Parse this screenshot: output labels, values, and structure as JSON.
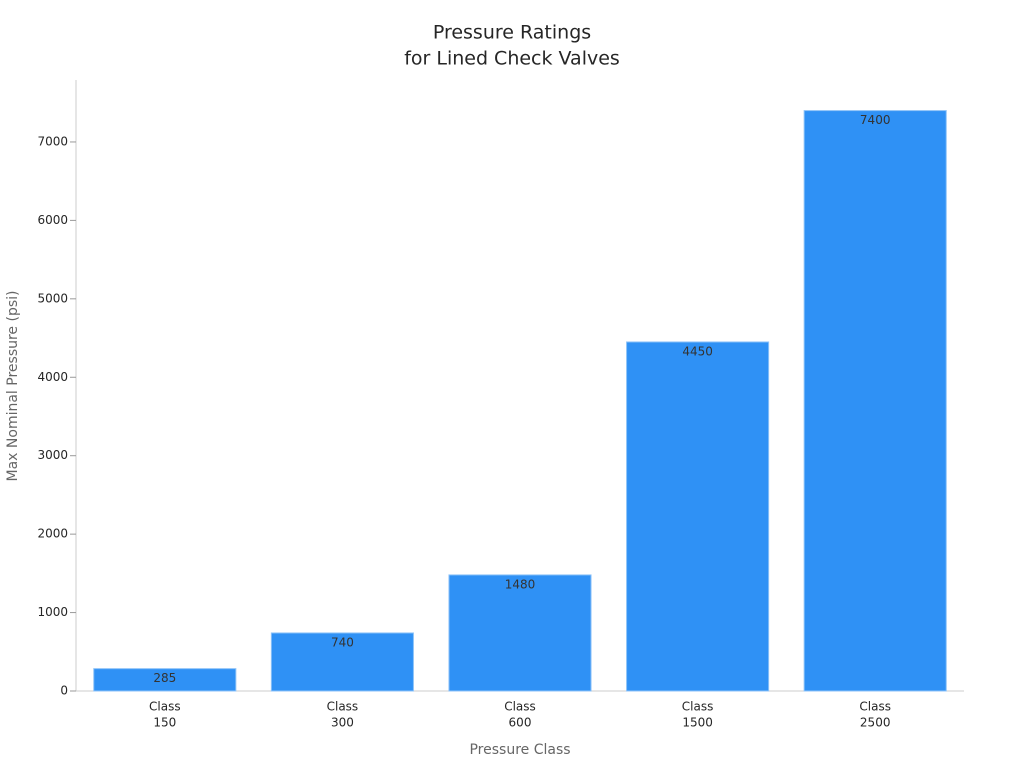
{
  "chart_data": {
    "type": "bar",
    "title": [
      "Pressure Ratings",
      "for Lined Check Valves"
    ],
    "x_label": "Pressure Class",
    "y_label": "Max Nominal Pressure (psi)",
    "categories": [
      [
        "Class",
        "150"
      ],
      [
        "Class",
        "300"
      ],
      [
        "Class",
        "600"
      ],
      [
        "Class",
        "1500"
      ],
      [
        "Class",
        "2500"
      ]
    ],
    "values": [
      285,
      740,
      1480,
      4450,
      7400
    ],
    "color": "#2f91f5",
    "ylim": [
      0,
      7790
    ],
    "yticks": [
      0,
      1000,
      2000,
      3000,
      4000,
      5000,
      6000,
      7000
    ],
    "grid": false
  }
}
